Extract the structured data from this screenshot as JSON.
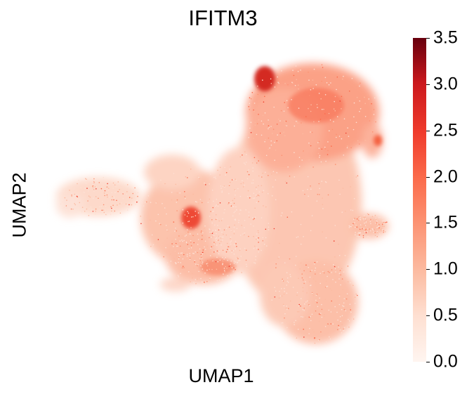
{
  "chart_data": {
    "type": "scatter",
    "title": "IFITM3",
    "xlabel": "UMAP1",
    "ylabel": "UMAP2",
    "colorbar": {
      "colormap": "Reds",
      "range": [
        0.0,
        3.5
      ],
      "ticks": [
        "0.0",
        "0.5",
        "1.0",
        "1.5",
        "2.0",
        "2.5",
        "3.0",
        "3.5"
      ]
    },
    "grid": false,
    "axes_visible": false
  },
  "colors": {
    "low": "#fff5f0",
    "mid": "#fc9272",
    "high": "#67000d"
  }
}
